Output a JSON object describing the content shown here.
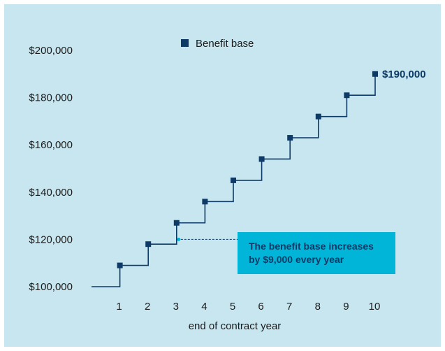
{
  "chart_data": {
    "type": "line",
    "step": true,
    "x": [
      0,
      1,
      2,
      3,
      4,
      5,
      6,
      7,
      8,
      9,
      10
    ],
    "x_ticks": [
      "1",
      "2",
      "3",
      "4",
      "5",
      "6",
      "7",
      "8",
      "9",
      "10"
    ],
    "xlabel": "end of contract year",
    "ylabel": "",
    "y_ticks": [
      "$100,000",
      "$120,000",
      "$140,000",
      "$160,000",
      "$180,000",
      "$200,000"
    ],
    "ylim": [
      100000,
      200000
    ],
    "grid": false,
    "legend_position": "top",
    "series": [
      {
        "name": "Benefit base",
        "color": "#0d3a66",
        "marker": "square",
        "values": [
          100000,
          109000,
          118000,
          127000,
          136000,
          145000,
          154000,
          163000,
          172000,
          181000,
          190000
        ]
      }
    ],
    "end_label": "$190,000",
    "annotation": {
      "lines": [
        "The benefit base increases",
        "by $9,000 every year"
      ],
      "x": 3,
      "y": 120000,
      "box_color": "#00b5d8",
      "dot_color": "#00b5d8"
    },
    "background_color": "#c7e6f0"
  }
}
